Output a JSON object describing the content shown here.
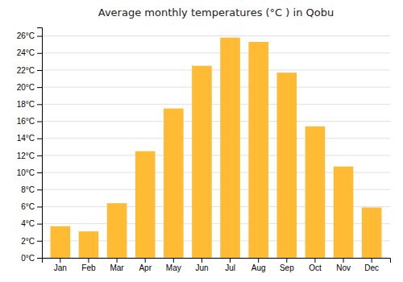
{
  "chart_data": {
    "type": "bar",
    "title": "Average monthly temperatures (°C ) in Qobu",
    "categories": [
      "Jan",
      "Feb",
      "Mar",
      "Apr",
      "May",
      "Jun",
      "Jul",
      "Aug",
      "Sep",
      "Oct",
      "Nov",
      "Dec"
    ],
    "values": [
      3.7,
      3.1,
      6.4,
      12.5,
      17.5,
      22.5,
      25.8,
      25.3,
      21.7,
      15.4,
      10.7,
      5.9
    ],
    "color": "#FFBB33",
    "ylim": [
      0,
      27
    ],
    "yticks": [
      {
        "value": 0,
        "label": "0°C"
      },
      {
        "value": 2,
        "label": "2°C"
      },
      {
        "value": 4,
        "label": "4°C"
      },
      {
        "value": 6,
        "label": "6°C"
      },
      {
        "value": 8,
        "label": "8°C"
      },
      {
        "value": 10,
        "label": "10°C"
      },
      {
        "value": 12,
        "label": "12°C"
      },
      {
        "value": 14,
        "label": "14°C"
      },
      {
        "value": 16,
        "label": "16°C"
      },
      {
        "value": 18,
        "label": "18°C"
      },
      {
        "value": 20,
        "label": "20°C"
      },
      {
        "value": 22,
        "label": "22°C"
      },
      {
        "value": 24,
        "label": "24°C"
      },
      {
        "value": 26,
        "label": "26°C"
      }
    ],
    "grid": true
  }
}
